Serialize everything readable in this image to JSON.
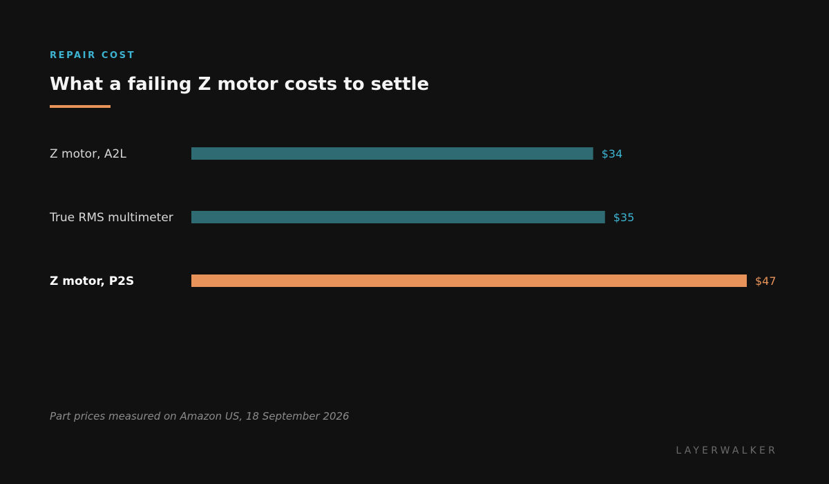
{
  "header": {
    "kicker": "REPAIR COST",
    "title": "What a failing Z motor costs to settle"
  },
  "footer": {
    "footnote": "Part prices measured on Amazon US, 18 September 2026",
    "brand": "LAYERWALKER"
  },
  "colors": {
    "background": "#111111",
    "bar_default": "#2e6b73",
    "bar_highlight": "#e8935a",
    "label_default": "#3cb4d2",
    "label_highlight": "#e8935a",
    "accent_rule": "#e8935a"
  },
  "chart_data": {
    "type": "bar",
    "orientation": "horizontal",
    "categories": [
      "Z motor, A2L",
      "True RMS multimeter",
      "Z motor, P2S"
    ],
    "values": [
      34,
      35,
      47
    ],
    "value_labels": [
      "$34",
      "$35",
      "$47"
    ],
    "highlight": [
      false,
      false,
      true
    ],
    "xlim": [
      0,
      47
    ],
    "grid": false,
    "legend": "none",
    "title": "What a failing Z motor costs to settle",
    "xlabel": "",
    "ylabel": ""
  }
}
